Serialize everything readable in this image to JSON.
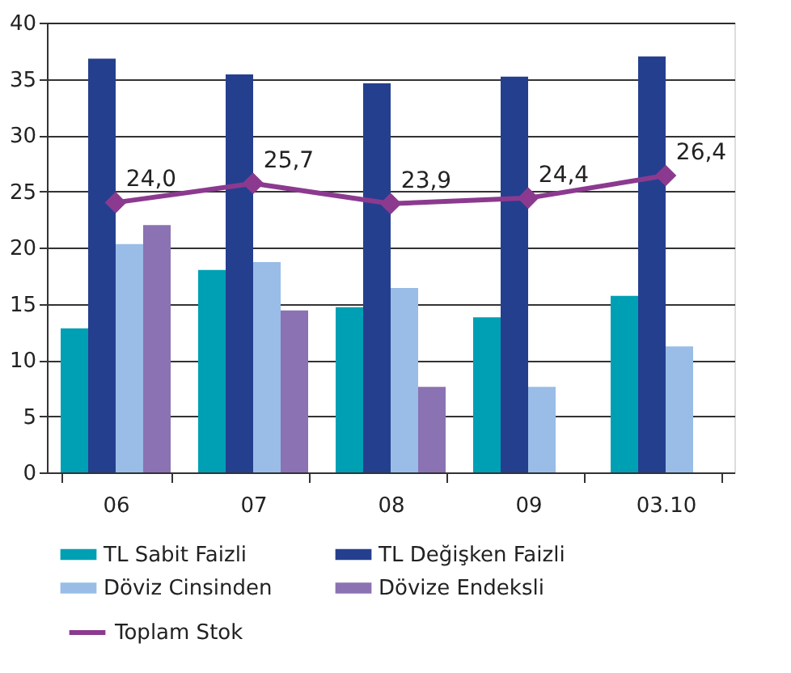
{
  "chart_data": {
    "type": "bar",
    "categories": [
      "06",
      "07",
      "08",
      "09",
      "03.10"
    ],
    "series": [
      {
        "name": "TL Sabit Faizli",
        "color": "#00a0b4",
        "values": [
          12.8,
          18.0,
          14.7,
          13.8,
          15.7
        ]
      },
      {
        "name": "TL Değişken Faizli",
        "color": "#253f8f",
        "values": [
          36.8,
          35.4,
          34.6,
          35.2,
          37.0
        ]
      },
      {
        "name": "Döviz Cinsinden",
        "color": "#99bde6",
        "values": [
          20.3,
          18.7,
          16.4,
          7.6,
          11.2
        ]
      },
      {
        "name": "Dövize Endeksli",
        "color": "#8b72b3",
        "values": [
          22.0,
          14.4,
          7.6,
          null,
          null
        ]
      },
      {
        "name": "Toplam Stok",
        "type": "line",
        "color": "#8b3a8f",
        "marker": "diamond",
        "values": [
          24.0,
          25.7,
          23.9,
          24.4,
          26.4
        ],
        "value_labels": [
          "24,0",
          "25,7",
          "23,9",
          "24,4",
          "26,4"
        ]
      }
    ],
    "ylim": [
      0,
      40
    ],
    "yticks": [
      0,
      5,
      10,
      15,
      20,
      25,
      30,
      35,
      40
    ],
    "grid": "y",
    "legend": "bottom"
  }
}
